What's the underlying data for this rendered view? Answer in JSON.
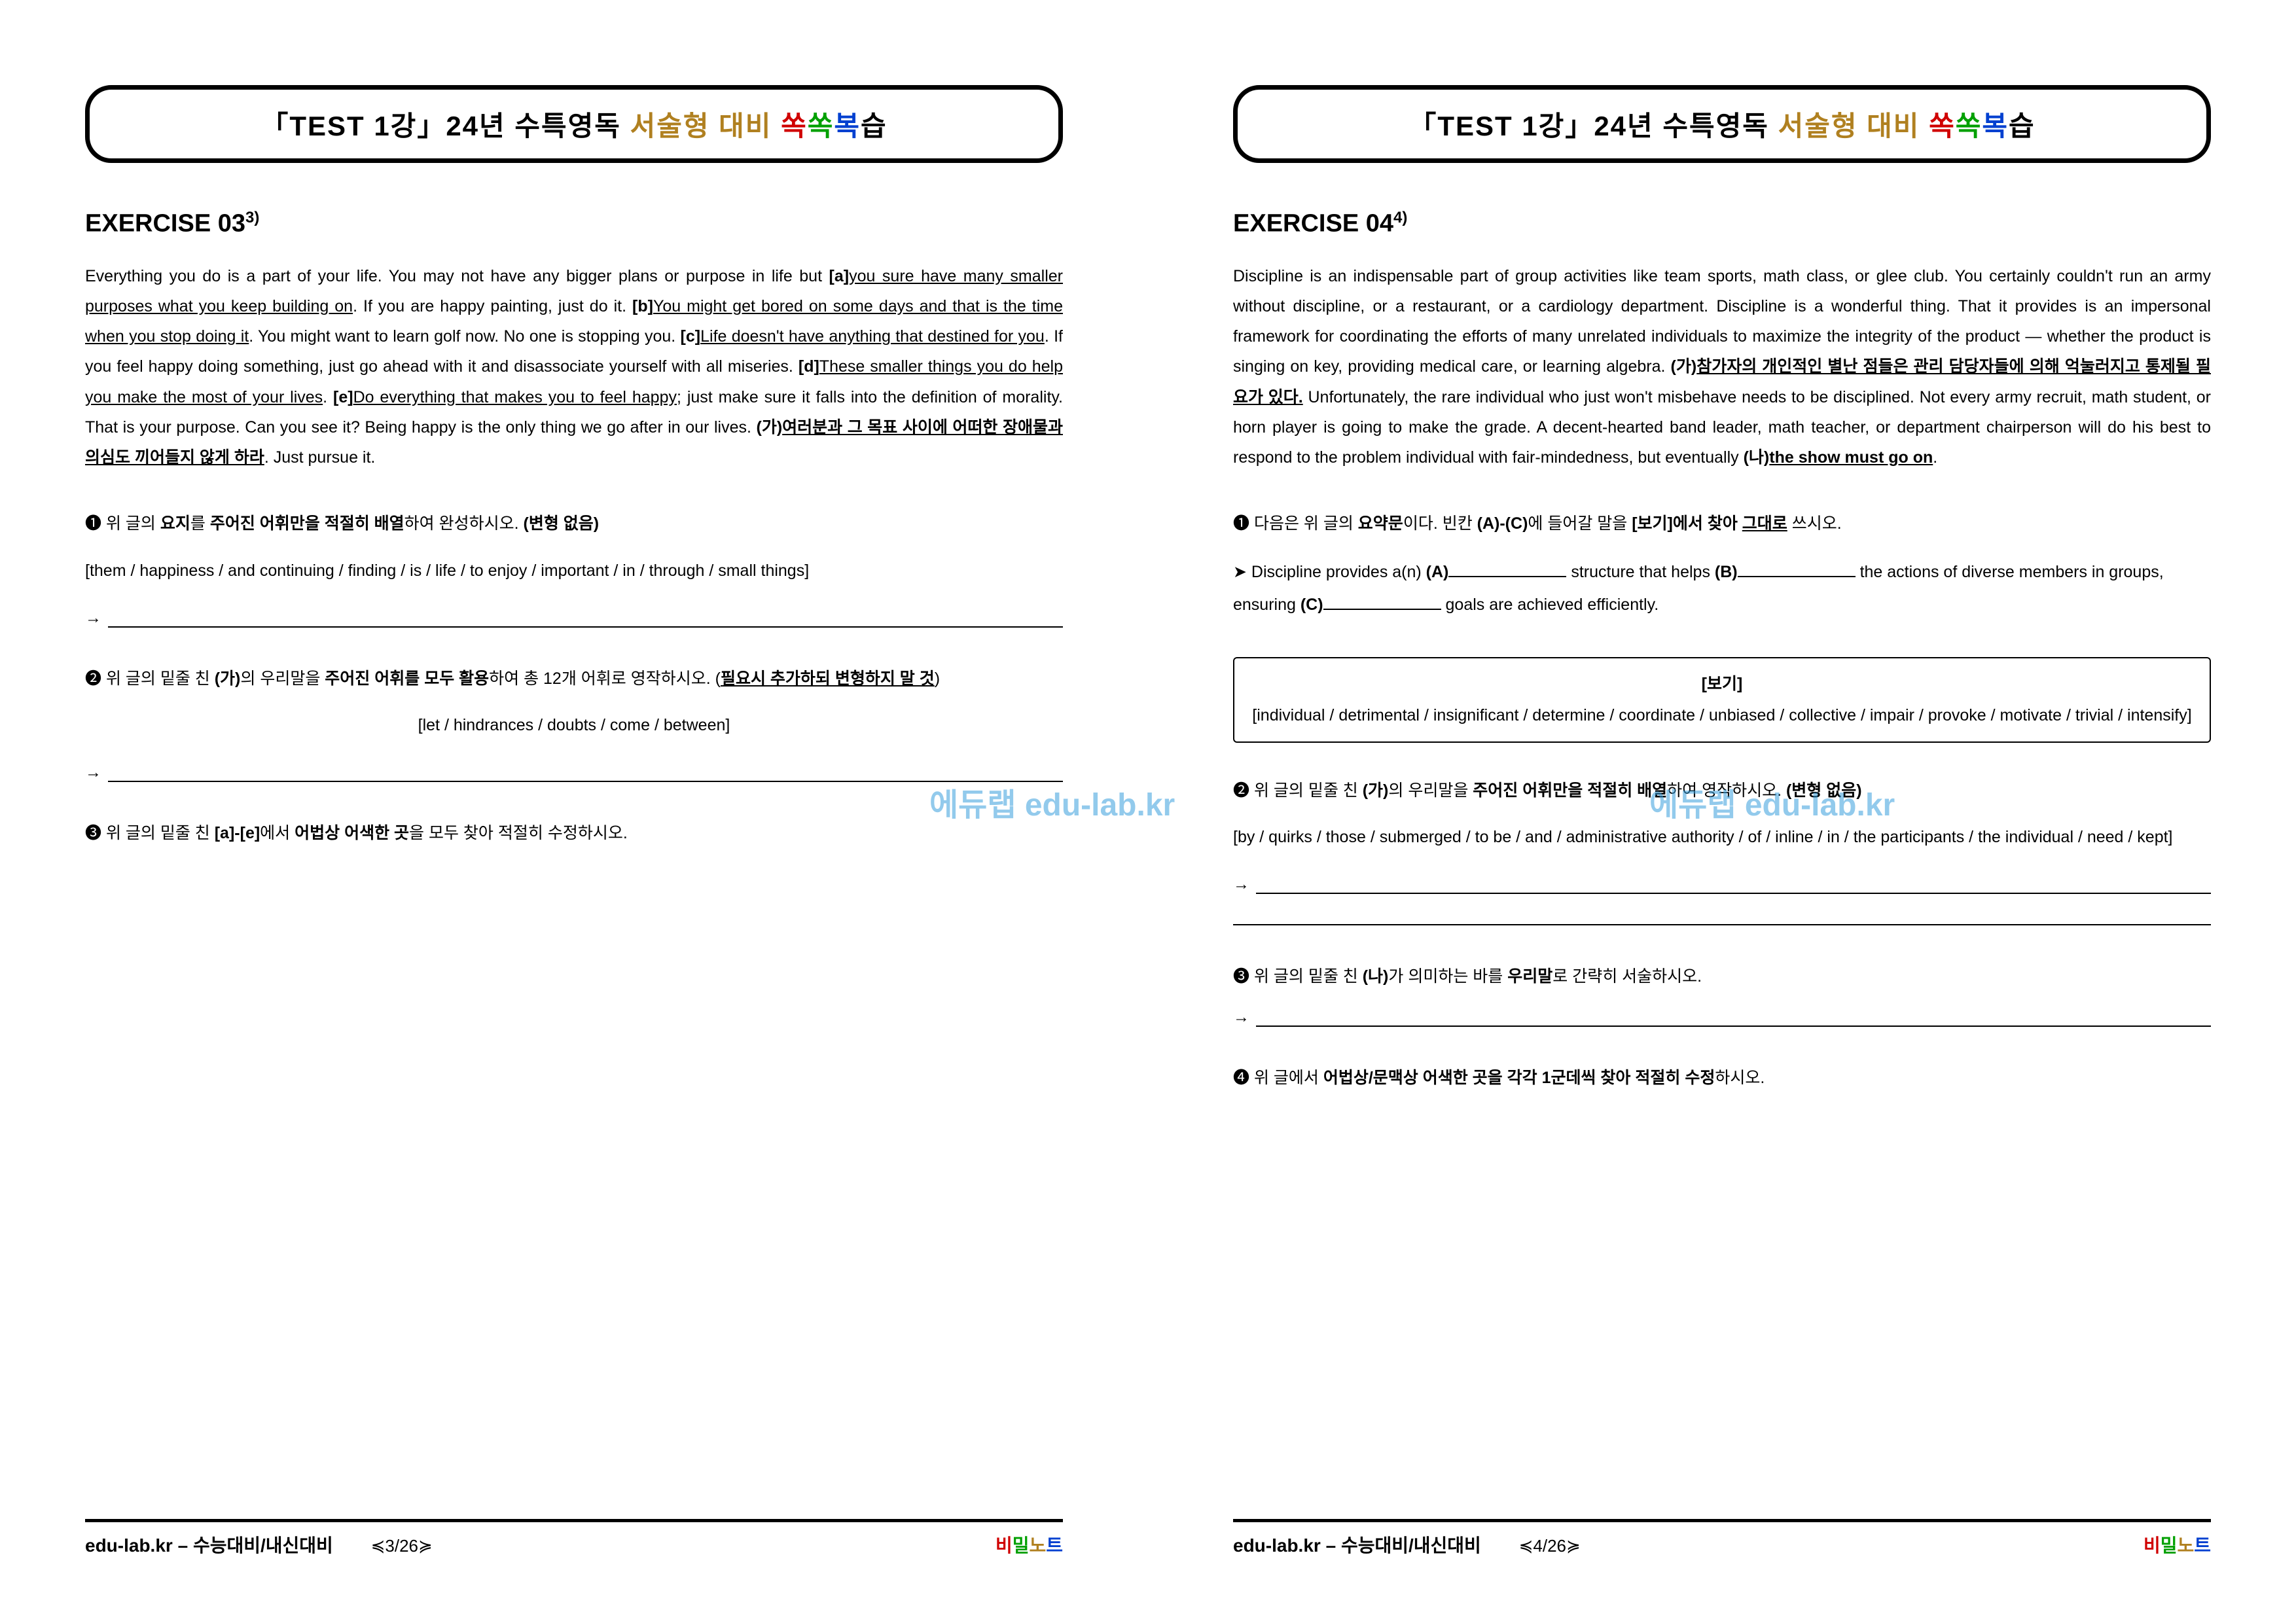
{
  "header": {
    "prefix": "「TEST 1강」24년 수특영독 ",
    "part2": "서술형 대비 ",
    "s1": "쏙",
    "s2": "쏙",
    "s3": "복",
    "s4": "습"
  },
  "watermark": "에듀랩 edu-lab.kr",
  "left": {
    "exercise_label": "EXERCISE 03",
    "exercise_sup": "3)",
    "passage_html": "Everything you do is a part of your life. You may not have any bigger plans or purpose in life but <b>[a]</b><span class=\"u\">you sure have many smaller purposes what you keep building on</span>. If you are happy painting, just do it. <b>[b]</b><span class=\"u\">You might get bored on some days and that is the time when you stop doing it</span>. You might want to learn golf now. No one is stopping you. <b>[c]</b><span class=\"u\">Life doesn't have anything that destined for you</span>. If you feel happy doing something, just go ahead with it and disassociate yourself with all miseries. <b>[d]</b><span class=\"u\">These smaller things you do help you make the most of your lives</span>. <b>[e]</b><span class=\"u\">Do everything that makes you to feel happy</span>; just make sure it falls into the definition of morality. That is your purpose. Can you see it? Being happy is the only thing we go after in our lives. <b>(가)<span class=\"u\">여러분과 그 목표 사이에 어떠한 장애물과 의심도 끼어들지 않게 하라</span></b>. Just pursue it.",
    "q1": "❶ 위 글의 <b>요지</b>를 <b>주어진 어휘만을 적절히 배열</b>하여 완성하시오. <b>(변형 없음)</b>",
    "q1_bank": "[them / happiness / and continuing / finding / is / life / to enjoy / important / in / through / small things]",
    "q2": "❷ 위 글의 밑줄 친 <b>(가)</b>의 우리말을 <b>주어진 어휘를 모두 활용</b>하여 총 12개 어휘로 영작하시오. (<b><span class=\"u\">필요시 추가하되 변형하지 말 것</span></b>)",
    "q2_bank": "[let / hindrances / doubts / come / between]",
    "q3": "❸ 위 글의 밑줄 친 <b>[a]-[e]</b>에서 <b>어법상 어색한 곳</b>을 모두 찾아 적절히 수정하시오.",
    "footer_left": "edu-lab.kr – 수능대비/내신대비",
    "footer_page": "≼3/26≽"
  },
  "right": {
    "exercise_label": "EXERCISE 04",
    "exercise_sup": "4)",
    "passage_html": "Discipline is an indispensable part of group activities like team sports, math class, or glee club. You certainly couldn't run an army without discipline, or a restaurant, or a cardiology department. Discipline is a wonderful thing. That it provides is an impersonal framework for coordinating the efforts of many unrelated individuals to maximize the integrity of the product — whether the product is singing on key, providing medical care, or learning algebra. <b>(가)<span class=\"u\">참가자의 개인적인 별난 점들은 관리 담당자들에 의해 억눌러지고 통제될 필요가 있다.</span></b> Unfortunately, the rare individual who just won't misbehave needs to be disciplined. Not every army recruit, math student, or horn player is going to make the grade. A decent-hearted band leader, math teacher, or department chairperson will do his best to respond to the problem individual with fair-mindedness, but eventually <b>(나)<span class=\"u\">the show must go on</span></b>.",
    "q1": "❶ 다음은 위 글의 <b>요약문</b>이다. 빈칸 <b>(A)-(C)</b>에 들어갈 말을 <b>[보기]에서 찾아 <span class=\"u\">그대로</span></b> 쓰시오.",
    "q1_fill_pre": "➤ Discipline provides a(n) ",
    "q1_A": "(A)",
    "q1_mid1": " structure that helps ",
    "q1_B": "(B)",
    "q1_mid2": " the actions of diverse members in groups, ensuring ",
    "q1_C": "(C)",
    "q1_end": " goals are achieved efficiently.",
    "box_title": "[보기]",
    "box_body": "[individual / detrimental / insignificant / determine / coordinate / unbiased / collective / impair / provoke / motivate / trivial / intensify]",
    "q2": "❷ 위 글의 밑줄 친 <b>(가)</b>의 우리말을 <b>주어진 어휘만을 적절히 배열</b>하여 영작하시오. <b>(변형 없음)</b>",
    "q2_bank": "[by / quirks / those / submerged / to be / and / administrative authority / of / inline / in / the participants / the individual / need / kept]",
    "q3": "❸ 위 글의 밑줄 친 <b>(나)</b>가 의미하는 바를 <b>우리말</b>로 간략히 서술하시오.",
    "q4": "❹ 위 글에서 <b>어법상/문맥상 어색한 곳을 각각 1군데씩 찾아 적절히 수정</b>하시오.",
    "footer_left": "edu-lab.kr – 수능대비/내신대비",
    "footer_page": "≼4/26≽"
  },
  "brand": {
    "c1": "비",
    "c2": "밀",
    "c3": "노",
    "c4": "트"
  }
}
